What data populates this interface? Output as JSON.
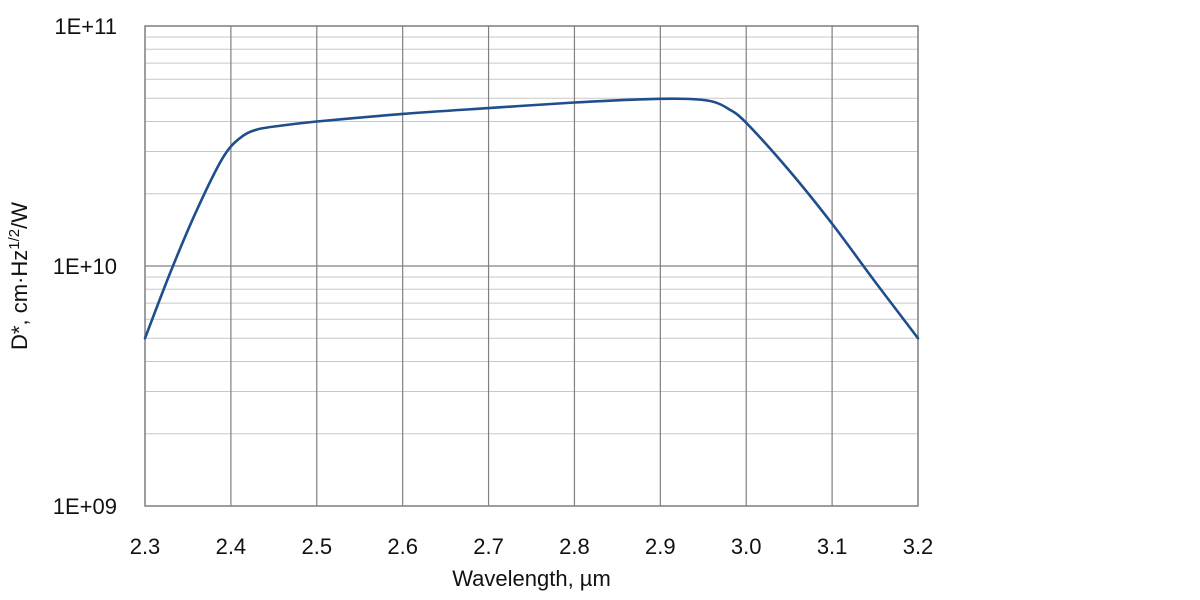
{
  "chart_data": {
    "type": "line",
    "title": "",
    "xlabel": "Wavelength, µm",
    "ylabel": {
      "base": "D*, cm",
      "dot": "·",
      "unit": "Hz",
      "exponent": "1/2",
      "suffix": "/W"
    },
    "x_scale": "linear",
    "y_scale": "log",
    "xlim": [
      2.3,
      3.2
    ],
    "ylim": [
      1000000000.0,
      100000000000.0
    ],
    "grid": true,
    "legend": "none",
    "x_ticks": [
      {
        "value": 2.3,
        "label": "2.3"
      },
      {
        "value": 2.4,
        "label": "2.4"
      },
      {
        "value": 2.5,
        "label": "2.5"
      },
      {
        "value": 2.6,
        "label": "2.6"
      },
      {
        "value": 2.7,
        "label": "2.7"
      },
      {
        "value": 2.8,
        "label": "2.8"
      },
      {
        "value": 2.9,
        "label": "2.9"
      },
      {
        "value": 3.0,
        "label": "3.0"
      },
      {
        "value": 3.1,
        "label": "3.1"
      },
      {
        "value": 3.2,
        "label": "3.2"
      }
    ],
    "y_ticks": [
      {
        "value": 1000000000.0,
        "label": "1E+09"
      },
      {
        "value": 10000000000.0,
        "label": "1E+10"
      },
      {
        "value": 100000000000.0,
        "label": "1E+11"
      }
    ],
    "series": [
      {
        "color": "#1f4e8c",
        "x": [
          2.3,
          2.33,
          2.36,
          2.39,
          2.41,
          2.43,
          2.46,
          2.5,
          2.6,
          2.7,
          2.8,
          2.88,
          2.93,
          2.96,
          2.98,
          3.0,
          3.05,
          3.1,
          3.15,
          3.2
        ],
        "y": [
          5000000000.0,
          9500000000.0,
          17000000000.0,
          28000000000.0,
          34000000000.0,
          37000000000.0,
          38500000000.0,
          40000000000.0,
          43000000000.0,
          45500000000.0,
          48000000000.0,
          49500000000.0,
          49700000000.0,
          48500000000.0,
          45000000000.0,
          39500000000.0,
          25000000000.0,
          15000000000.0,
          8600000000.0,
          5000000000.0
        ]
      }
    ]
  }
}
